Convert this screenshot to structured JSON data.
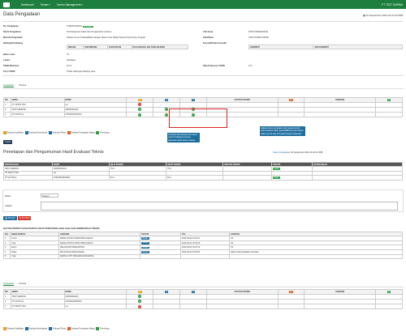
{
  "nav": {
    "dashboard": "Dashboard",
    "tender": "Tender ▾",
    "vendor": "Vendor Management ▾",
    "user": "PT TEST KURNIA"
  },
  "title": "Data Pengadaan",
  "date": "04 September 2024 16:37:53 WIB",
  "info": [
    {
      "k": "No. Pengadaan",
      "v": "TNRSPL100001",
      "badge": "Kualifikasi"
    },
    {
      "k": "Nama Pengadaan",
      "v": "Pembangunan Kabel dan Pengamanan Lantai 2"
    },
    {
      "k": "Metode Pengadaan",
      "v": "Seleksi Umum Prakualifikasi dengan Sistem Dua Tahap Sampul Pemenang Tunggal"
    },
    {
      "k": "Bidang/Sub Bidang",
      "v": ""
    },
    {
      "k": "Batas Lulus",
      "v": "70"
    },
    {
      "k": "Lokasi",
      "v": "Surabaya"
    },
    {
      "k": "TKDN Minimum",
      "v": "10 %"
    },
    {
      "k": "Porsi TKDN",
      "v": "TKDN Gabungan Barang Jasa"
    }
  ],
  "info_right": [
    {
      "k": "Unit Kerja",
      "v": "DIVISI PENDIDIKAN"
    },
    {
      "k": "Klasifikasi",
      "v": "JASA KONSULTANSI"
    },
    {
      "k": "Komoditi/Sub Komoditi",
      "v": ""
    },
    {
      "k": "Nilai Preferensi TKDN",
      "v": "0 %"
    }
  ],
  "bidang_headers": [
    "BIDANG",
    "SUB BIDANG",
    "KUALIFIKASI",
    "KUALIFIKASI LAIN YANG SEJENIS"
  ],
  "komoditi_headers": [
    "KOMODITI",
    "SUB KOMODITI"
  ],
  "tabs1": [
    "Pengadaan",
    "Peserta"
  ],
  "eval_headers": [
    "NO",
    "NAMA",
    "NPWP",
    "K",
    "A",
    "T",
    "URUTAN TEKNIS",
    "H",
    "RANKING",
    "P"
  ],
  "eval_rows": [
    {
      "no": "1",
      "nama": "PT TANTO TES",
      "npwp": "tes",
      "k": "no",
      "a": "",
      "t": ""
    },
    {
      "no": "2",
      "nama": "TEST VENDOR",
      "npwp": "546564543213",
      "k": "ok",
      "a": "ok",
      "t": "ok"
    },
    {
      "no": "3",
      "nama": "PT OUTPULL",
      "npwp": "675543543543543",
      "k": "ok",
      "a": "ok",
      "t": "ok"
    }
  ],
  "legend": [
    "Evaluasi Kualifikasi",
    "Evaluasi Administrasi",
    "Evaluasi Teknis",
    "Evaluasi Penawaran Harga",
    "Pemenang"
  ],
  "callout1": "checklist administrasi dan teknis muncul walaupun proses approval masih belum selesai",
  "callout2": "ketika proses penetapan dan pengumuman hasil evaluasi teknis prakualifikasi urutan teknis tidak muncul tapi di Panitia disepuh Defender",
  "btn_tugas": "Tugas",
  "section2": "Penetapan dan Pengumuman Hasil Evaluasi Teknis",
  "section2_date": "04 September 2024 16:40:13 WIB",
  "section2_status": "Status Pengadaan",
  "pen_headers": [
    "PERUSAHAAN",
    "NPWP",
    "NILAI TEKNIS",
    "SKOR TEKNIS",
    "URUTAN TEKNIS",
    "STATUS",
    "KETERANGAN"
  ],
  "pen_rows": [
    {
      "p": "TEST VENDOR",
      "npwp": "546564543213",
      "nilai": "75.6",
      "skor": "75.6",
      "status": "Lulus"
    },
    {
      "p": "PT TANTO TES",
      "npwp": "tes",
      "nilai": "",
      "skor": "",
      "status": ""
    },
    {
      "p": "PT OUTPULL",
      "npwp": "675543543543543",
      "nilai": "84.3",
      "skor": "84.3",
      "status": "Lulus"
    }
  ],
  "status_label": "Status",
  "status_value": "Setuju ▾",
  "catatan_label": "Catatan",
  "btn_simpan": "Simpan",
  "btn_kembali": "Kembali",
  "panitia_title": "DAFTAR PERSETUJUAN PANITIA TAHAP PENETAPAN HASIL EVALUASI ADMINISTRASI TEKNIS",
  "panitia_headers": [
    "NO",
    "NAMA PANITIA",
    "JABATAN",
    "STATUS",
    "TGL",
    "CATATAN"
  ],
  "panitia_rows": [
    {
      "no": "1",
      "nama": "Trisna",
      "jabatan": "KEPALA DIVISI UMUM PENGADAAN",
      "status": "Setuju",
      "tgl": "2024-09-04 16:18:27",
      "cat": "Ok"
    },
    {
      "no": "2",
      "nama": "Tuigi",
      "jabatan": "KEPALA DIVISI UMUM PENGADAAN",
      "status": "Setuju",
      "tgl": "2024-09-04 16:19:00",
      "cat": "Ok"
    },
    {
      "no": "3",
      "nama": "Destri",
      "jabatan": "PELAKSANA PENGADAAN",
      "status": "Setuju",
      "tgl": "2024-09-04 16:22:10",
      "cat": "Ok"
    },
    {
      "no": "4",
      "nama": "Fiekie",
      "jabatan": "PELAKSANA PENGADAAN",
      "status": "Setuju",
      "tgl": "2024-09-04 16:35:20",
      "cat": "diakomodasi kebijakan terhadap"
    },
    {
      "no": "5",
      "nama": "Yogie",
      "jabatan": "KEPALA UNIT PENGADAAN BARANG",
      "status": "",
      "tgl": "",
      "cat": ""
    }
  ],
  "tabs2": [
    "Pengadaan",
    "Peserta"
  ],
  "eval2_rows": [
    {
      "no": "1",
      "nama": "TEST VENDOR",
      "npwp": "546564543213",
      "k": "ok"
    },
    {
      "no": "2",
      "nama": "PT OUTPULL",
      "npwp": "675543543543543",
      "k": "ok"
    },
    {
      "no": "3",
      "nama": "PT TANTO TES",
      "npwp": "tes",
      "k": "no"
    }
  ],
  "colors": {
    "green": "#1e7e3e",
    "blue": "#1e6ea0",
    "red": "#d9342b"
  }
}
